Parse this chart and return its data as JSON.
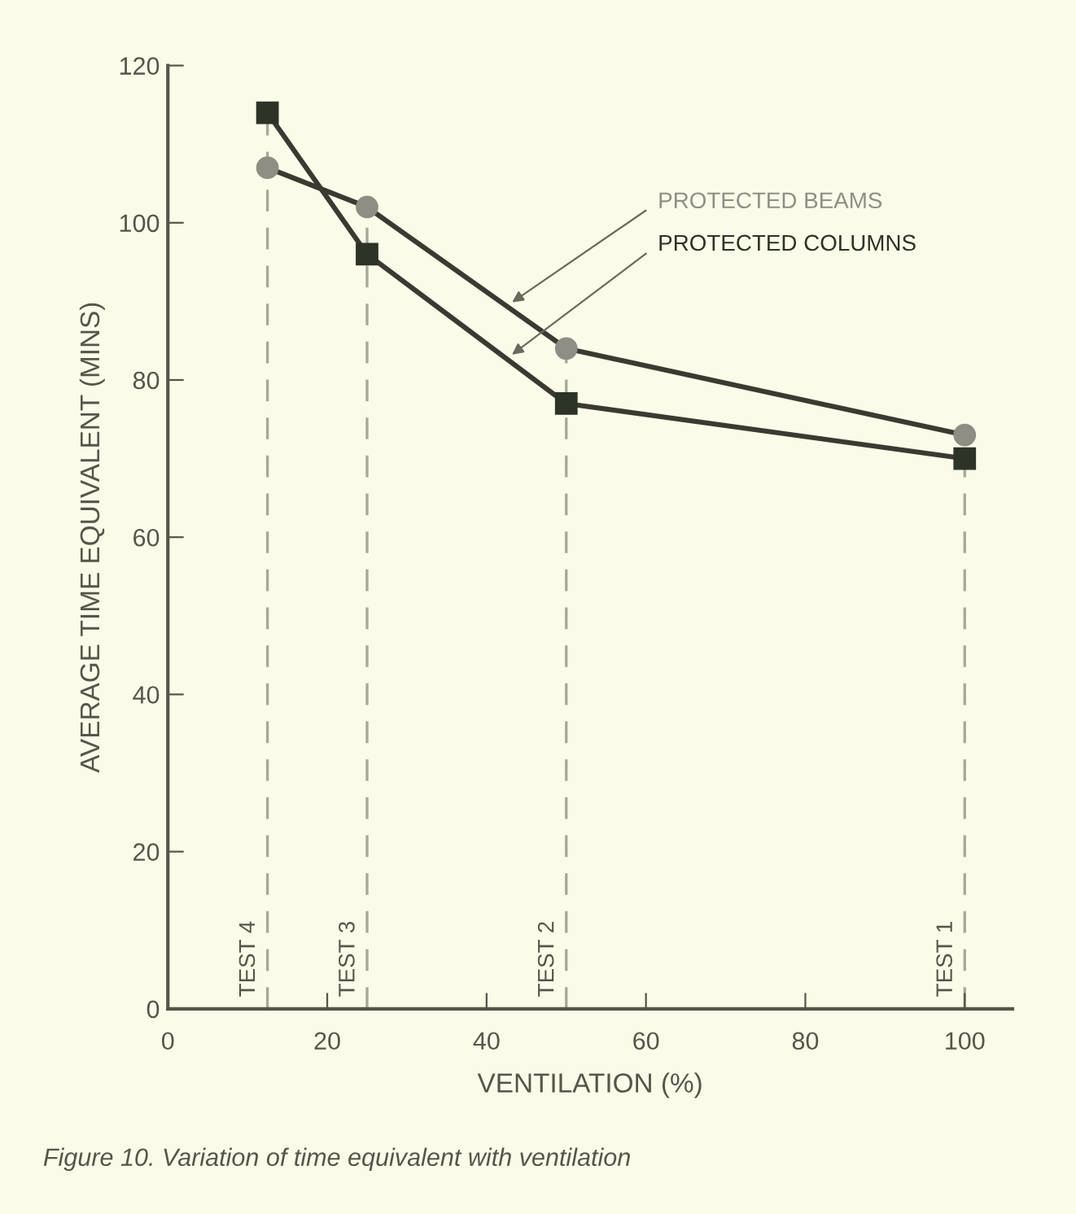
{
  "chart_data": {
    "type": "line",
    "xlabel": "VENTILATION (%)",
    "ylabel": "AVERAGE TIME EQUIVALENT (MINS)",
    "x": [
      12.5,
      25,
      50,
      100
    ],
    "series": [
      {
        "name": "PROTECTED BEAMS",
        "color": "#8e8e84",
        "marker": "circle",
        "values": [
          107,
          102,
          84,
          73
        ]
      },
      {
        "name": "PROTECTED COLUMNS",
        "color": "#2e3328",
        "marker": "square",
        "values": [
          114,
          96,
          77,
          70
        ]
      }
    ],
    "xlim": [
      0,
      106
    ],
    "ylim": [
      0,
      120
    ],
    "xticks": [
      0,
      20,
      40,
      60,
      80,
      100
    ],
    "yticks": [
      0,
      20,
      40,
      60,
      80,
      100,
      120
    ],
    "ref_lines": [
      {
        "axis": "x",
        "value": 12.5,
        "label": "TEST 4",
        "color": "#a8a89a",
        "line_style": "dashed"
      },
      {
        "axis": "x",
        "value": 25,
        "label": "TEST 3",
        "color": "#a8a89a",
        "line_style": "dashed"
      },
      {
        "axis": "x",
        "value": 50,
        "label": "TEST 2",
        "color": "#a8a89a",
        "line_style": "dashed"
      },
      {
        "axis": "x",
        "value": 100,
        "label": "TEST 1",
        "color": "#a8a89a",
        "line_style": "dashed"
      }
    ],
    "grid": false,
    "legend": false,
    "line_style": "solid",
    "annotations": [
      "Figure 10. Variation of time equivalent with ventilation"
    ]
  }
}
